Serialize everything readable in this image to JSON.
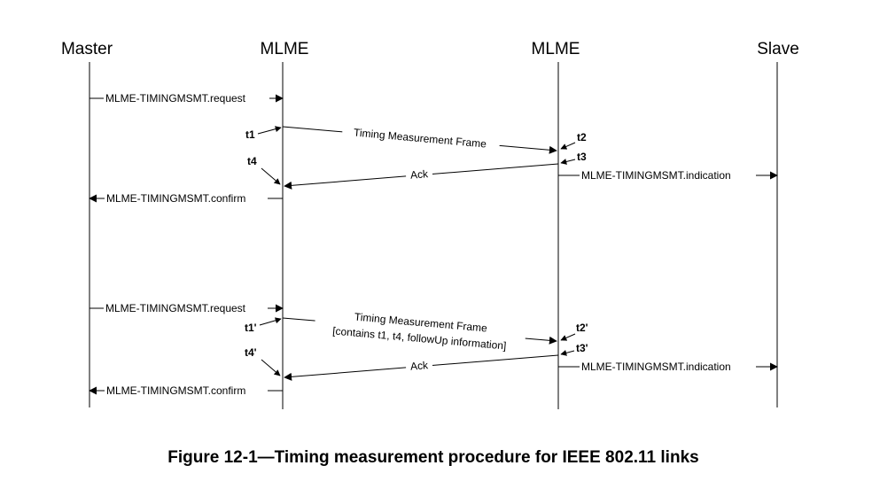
{
  "participants": {
    "master": "Master",
    "mlme_left": "MLME",
    "mlme_right": "MLME",
    "slave": "Slave"
  },
  "sequence1": {
    "request": "MLME-TIMINGMSMT.request",
    "frame": "Timing Measurement Frame",
    "ack": "Ack",
    "indication": "MLME-TIMINGMSMT.indication",
    "confirm": "MLME-TIMINGMSMT.confirm",
    "t1": "t1",
    "t2": "t2",
    "t3": "t3",
    "t4": "t4"
  },
  "sequence2": {
    "request": "MLME-TIMINGMSMT.request",
    "frame_line1": "Timing Measurement Frame",
    "frame_line2": "[contains t1, t4, followUp information]",
    "ack": "Ack",
    "indication": "MLME-TIMINGMSMT.indication",
    "confirm": "MLME-TIMINGMSMT.confirm",
    "t1": "t1'",
    "t2": "t2'",
    "t3": "t3'",
    "t4": "t4'"
  },
  "caption": "Figure 12-1—Timing measurement procedure for IEEE 802.11 links"
}
